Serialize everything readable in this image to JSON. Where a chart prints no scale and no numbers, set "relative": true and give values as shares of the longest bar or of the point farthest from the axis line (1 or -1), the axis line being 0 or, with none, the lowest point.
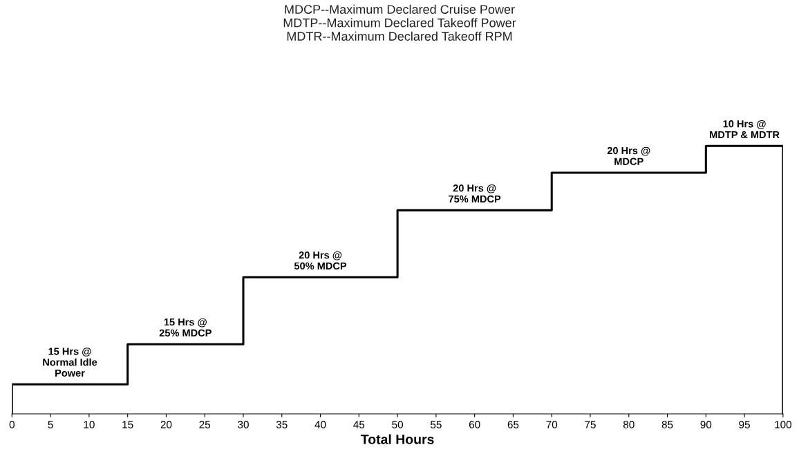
{
  "chart_data": {
    "type": "step",
    "title": "MDCP--Maximum Declared Cruise Power\nMDTP--Maximum Declared Takeoff Power\nMDTR--Maximum Declared Takeoff RPM",
    "xlabel": "Total Hours",
    "relative": true,
    "x": [
      0,
      0,
      15,
      30,
      50,
      70,
      90,
      100,
      100
    ],
    "series": [
      {
        "color": "#000000",
        "values": [
          0,
          0.11,
          0.26,
          0.51,
          0.76,
          0.9,
          1.0,
          1.0,
          0
        ]
      }
    ],
    "xlim": [
      0,
      100
    ],
    "xticks": [
      0,
      5,
      10,
      15,
      20,
      25,
      30,
      35,
      40,
      45,
      50,
      55,
      60,
      65,
      70,
      75,
      80,
      85,
      90,
      95,
      100
    ],
    "grid": false,
    "legend": false,
    "annotations": [
      {
        "text": "15 Hrs @\nNormal Idle\nPower",
        "x": 7.5,
        "y": 0.11
      },
      {
        "text": "15 Hrs @\n25% MDCP",
        "x": 22.5,
        "y": 0.26
      },
      {
        "text": "20 Hrs @\n50% MDCP",
        "x": 40,
        "y": 0.51
      },
      {
        "text": "20 Hrs @\n75% MDCP",
        "x": 60,
        "y": 0.76
      },
      {
        "text": "20 Hrs @\nMDCP",
        "x": 80,
        "y": 0.9
      },
      {
        "text": "10 Hrs @\nMDTP & MDTR",
        "x": 95,
        "y": 1.0
      }
    ]
  }
}
